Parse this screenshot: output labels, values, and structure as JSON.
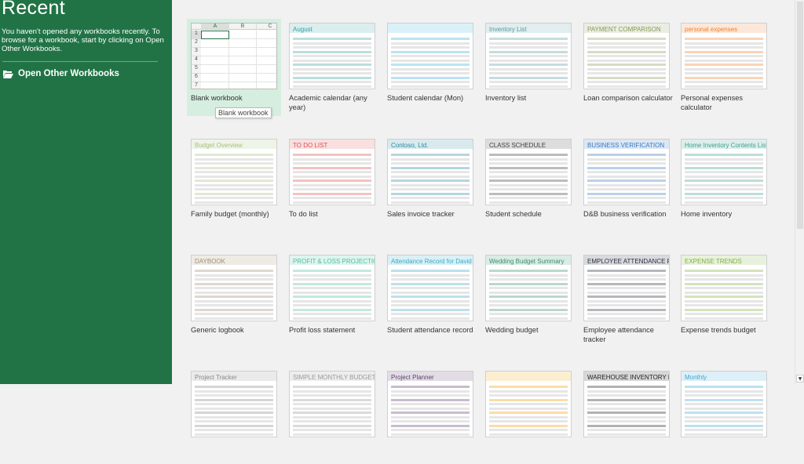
{
  "sidebar": {
    "title": "Recent",
    "message": "You haven't opened any workbooks recently. To browse for a workbook, start by clicking on Open Other Workbooks.",
    "open_other": "Open Other Workbooks",
    "open_icon": "folder-open-icon"
  },
  "colors": {
    "sidebar": "#217346",
    "selected": "#d5eee0"
  },
  "tooltip": "Blank workbook",
  "blank": {
    "columns": [
      "A",
      "B",
      "C"
    ],
    "rows": [
      "1",
      "2",
      "3",
      "4",
      "5",
      "6",
      "7"
    ]
  },
  "templates": [
    {
      "label": "Blank workbook",
      "thumb_title": "",
      "accent": "#217346"
    },
    {
      "label": "Academic calendar (any year)",
      "thumb_title": "August",
      "accent": "#3aa0a0"
    },
    {
      "label": "Student calendar (Mon)",
      "thumb_title": "",
      "accent": "#3ab0d8"
    },
    {
      "label": "Inventory list",
      "thumb_title": "Inventory List",
      "accent": "#5a9aa0"
    },
    {
      "label": "Loan comparison calculator",
      "thumb_title": "PAYMENT COMPARISON",
      "accent": "#8a9a5a"
    },
    {
      "label": "Personal expenses calculator",
      "thumb_title": "personal expenses",
      "accent": "#f08030"
    },
    {
      "label": "Family budget (monthly)",
      "thumb_title": "Budget Overview",
      "accent": "#a8c080"
    },
    {
      "label": "To do list",
      "thumb_title": "TO DO LIST",
      "accent": "#e05050"
    },
    {
      "label": "Sales invoice tracker",
      "thumb_title": "Contoso, Ltd.",
      "accent": "#2a8aa0"
    },
    {
      "label": "Student schedule",
      "thumb_title": "CLASS SCHEDULE",
      "accent": "#404040"
    },
    {
      "label": "D&B business verification",
      "thumb_title": "BUSINESS VERIFICATION",
      "accent": "#3a7ac0"
    },
    {
      "label": "Home inventory",
      "thumb_title": "Home Inventory Contents List",
      "accent": "#40a090"
    },
    {
      "label": "Generic logbook",
      "thumb_title": "DAYBOOK",
      "accent": "#a09070"
    },
    {
      "label": "Profit loss statement",
      "thumb_title": "PROFIT & LOSS PROJECTION",
      "accent": "#50c0a0"
    },
    {
      "label": "Student attendance record",
      "thumb_title": "Attendance Record for  David Alexander",
      "accent": "#3aaac8"
    },
    {
      "label": "Wedding budget",
      "thumb_title": "Wedding Budget Summary",
      "accent": "#3a9070"
    },
    {
      "label": "Employee attendance tracker",
      "thumb_title": "EMPLOYEE ATTENDANCE RECORD",
      "accent": "#2a3040"
    },
    {
      "label": "Expense trends budget",
      "thumb_title": "EXPENSE TRENDS",
      "accent": "#80b040"
    },
    {
      "label": "",
      "thumb_title": "Project Tracker",
      "accent": "#888888"
    },
    {
      "label": "",
      "thumb_title": "SIMPLE MONTHLY BUDGET",
      "accent": "#999999"
    },
    {
      "label": "",
      "thumb_title": "Project Planner",
      "accent": "#604070"
    },
    {
      "label": "",
      "thumb_title": "",
      "accent": "#f0a000"
    },
    {
      "label": "",
      "thumb_title": "WAREHOUSE INVENTORY LIST",
      "accent": "#222222"
    },
    {
      "label": "",
      "thumb_title": "Monthly",
      "accent": "#40a8d0"
    }
  ]
}
